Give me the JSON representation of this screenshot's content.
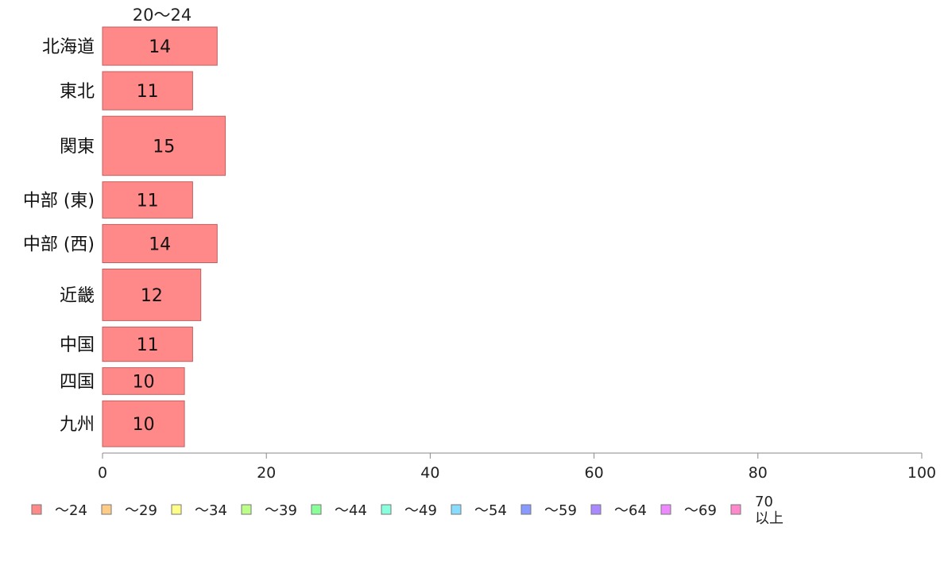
{
  "chart_data": {
    "type": "bar",
    "orientation": "horizontal",
    "title": "20〜24",
    "categories": [
      "北海道",
      "東北",
      "関東",
      "中部 (東)",
      "中部 (西)",
      "近畿",
      "中国",
      "四国",
      "九州"
    ],
    "values": [
      14,
      11,
      15,
      11,
      14,
      12,
      11,
      10,
      10
    ],
    "relative_bar_thickness": [
      1.0,
      1.0,
      1.55,
      0.95,
      1.0,
      1.35,
      0.9,
      0.7,
      1.2
    ],
    "xlim": [
      0,
      100
    ],
    "xticks": [
      0,
      20,
      40,
      60,
      80,
      100
    ],
    "grid": false,
    "legend_position": "bottom",
    "legend": [
      {
        "label": "〜24",
        "color": "#ff8888"
      },
      {
        "label": "〜29",
        "color": "#ffcc88"
      },
      {
        "label": "〜34",
        "color": "#ffff88"
      },
      {
        "label": "〜39",
        "color": "#bbff88"
      },
      {
        "label": "〜44",
        "color": "#88ff99"
      },
      {
        "label": "〜49",
        "color": "#88ffdd"
      },
      {
        "label": "〜54",
        "color": "#88ddff"
      },
      {
        "label": "〜59",
        "color": "#8899ff"
      },
      {
        "label": "〜64",
        "color": "#aa88ff"
      },
      {
        "label": "〜69",
        "color": "#ee88ff"
      },
      {
        "label": "70\n以上",
        "color": "#ff88cc"
      }
    ],
    "bar_color": "#ff8888",
    "bar_stroke": "#c06060"
  }
}
